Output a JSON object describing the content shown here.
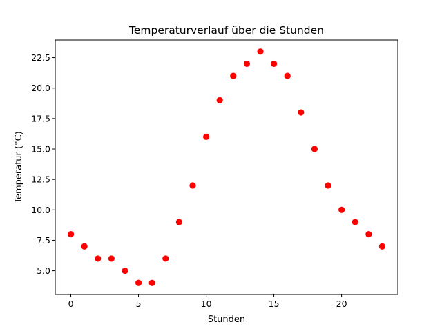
{
  "chart_data": {
    "type": "scatter",
    "title": "Temperaturverlauf über die Stunden",
    "xlabel": "Stunden",
    "ylabel": "Temperatur (°C)",
    "x": [
      0,
      1,
      2,
      3,
      4,
      5,
      6,
      7,
      8,
      9,
      10,
      11,
      12,
      13,
      14,
      15,
      16,
      17,
      18,
      19,
      20,
      21,
      22,
      23
    ],
    "y": [
      8,
      7,
      6,
      6,
      5,
      4,
      4,
      6,
      9,
      12,
      16,
      19,
      21,
      22,
      23,
      22,
      21,
      18,
      15,
      12,
      10,
      9,
      8,
      7
    ],
    "xlim": [
      -1.15,
      24.15
    ],
    "ylim": [
      3.05,
      23.95
    ],
    "xticks": [
      0,
      5,
      10,
      15,
      20
    ],
    "xtick_labels": [
      "0",
      "5",
      "10",
      "15",
      "20"
    ],
    "yticks": [
      5,
      7.5,
      10,
      12.5,
      15,
      17.5,
      20,
      22.5
    ],
    "ytick_labels": [
      "5.0",
      "7.5",
      "10.0",
      "12.5",
      "15.0",
      "17.5",
      "20.0",
      "22.5"
    ],
    "marker_color": "#ff0000",
    "grid": false,
    "legend": "none"
  }
}
